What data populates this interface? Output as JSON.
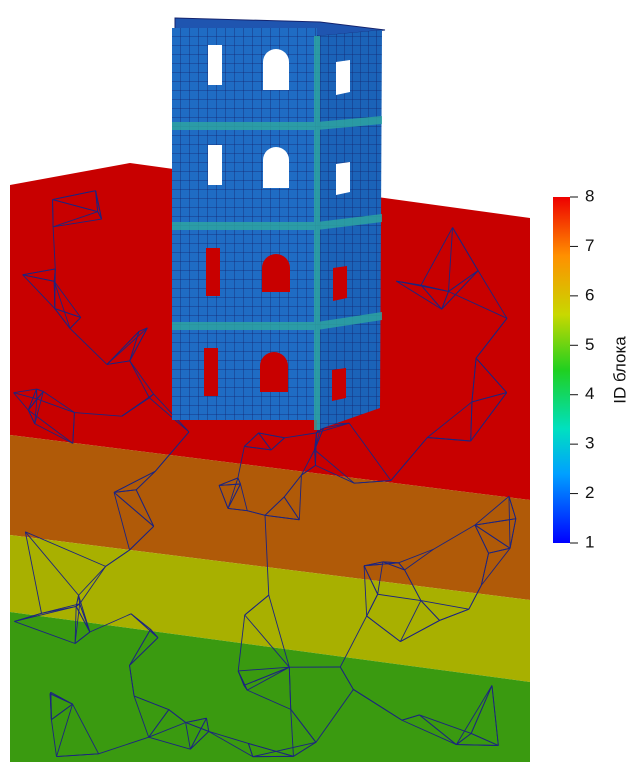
{
  "colorbar": {
    "title": "ID блока",
    "range": [
      1,
      8
    ],
    "ticks": [
      1,
      2,
      3,
      4,
      5,
      6,
      7,
      8
    ]
  }
}
